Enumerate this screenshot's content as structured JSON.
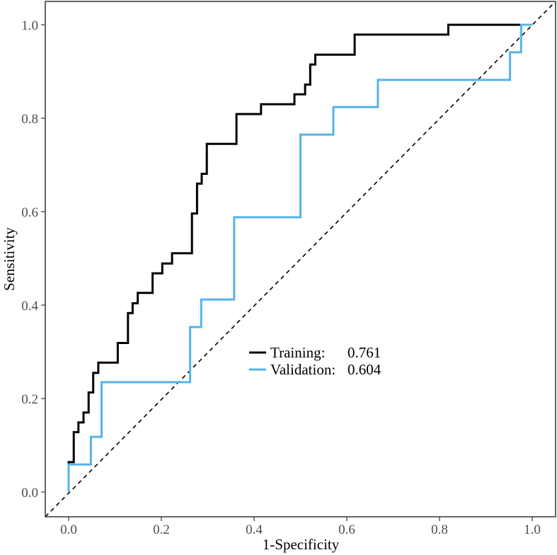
{
  "chart_data": {
    "type": "line",
    "title": "",
    "xlabel": "1-Specificity",
    "ylabel": "Sensitivity",
    "xlim": [
      0.0,
      1.0
    ],
    "ylim": [
      0.0,
      1.0
    ],
    "xticks": [
      "0.0",
      "0.2",
      "0.4",
      "0.6",
      "0.8",
      "1.0"
    ],
    "yticks": [
      "0.0",
      "0.2",
      "0.4",
      "0.6",
      "0.8",
      "1.0"
    ],
    "grid": false,
    "legend_position": "center",
    "reference_line": {
      "name": "chance",
      "style": "dashed",
      "color": "#000000",
      "from": [
        0,
        0
      ],
      "to": [
        1,
        1
      ]
    },
    "series": [
      {
        "name": "Training:",
        "auc": "0.761",
        "color": "#000000",
        "x": [
          0.0,
          0.0,
          0.011,
          0.011,
          0.021,
          0.021,
          0.032,
          0.032,
          0.043,
          0.043,
          0.053,
          0.053,
          0.064,
          0.064,
          0.074,
          0.074,
          0.106,
          0.106,
          0.128,
          0.128,
          0.138,
          0.138,
          0.149,
          0.149,
          0.181,
          0.181,
          0.202,
          0.202,
          0.223,
          0.223,
          0.266,
          0.266,
          0.277,
          0.277,
          0.287,
          0.287,
          0.298,
          0.298,
          0.362,
          0.362,
          0.415,
          0.415,
          0.487,
          0.487,
          0.51,
          0.51,
          0.521,
          0.521,
          0.532,
          0.532,
          0.617,
          0.617,
          0.819,
          0.819,
          1.0
        ],
        "y": [
          0.0,
          0.064,
          0.064,
          0.128,
          0.128,
          0.149,
          0.149,
          0.17,
          0.17,
          0.213,
          0.213,
          0.255,
          0.255,
          0.277,
          0.277,
          0.277,
          0.277,
          0.319,
          0.319,
          0.383,
          0.383,
          0.404,
          0.404,
          0.426,
          0.426,
          0.468,
          0.468,
          0.489,
          0.489,
          0.511,
          0.511,
          0.596,
          0.596,
          0.66,
          0.66,
          0.681,
          0.681,
          0.745,
          0.745,
          0.809,
          0.809,
          0.83,
          0.83,
          0.851,
          0.851,
          0.872,
          0.872,
          0.915,
          0.915,
          0.936,
          0.936,
          0.979,
          0.979,
          1.0,
          1.0
        ]
      },
      {
        "name": "Validation:",
        "auc": "0.604",
        "color": "#56B4E9",
        "x": [
          0.0,
          0.0,
          0.048,
          0.048,
          0.071,
          0.071,
          0.262,
          0.262,
          0.286,
          0.286,
          0.357,
          0.357,
          0.5,
          0.5,
          0.571,
          0.571,
          0.667,
          0.667,
          0.952,
          0.952,
          0.976,
          0.976,
          1.0
        ],
        "y": [
          0.0,
          0.059,
          0.059,
          0.118,
          0.118,
          0.235,
          0.235,
          0.353,
          0.353,
          0.412,
          0.412,
          0.588,
          0.588,
          0.765,
          0.765,
          0.824,
          0.824,
          0.882,
          0.882,
          0.941,
          0.941,
          1.0,
          1.0
        ]
      }
    ]
  }
}
